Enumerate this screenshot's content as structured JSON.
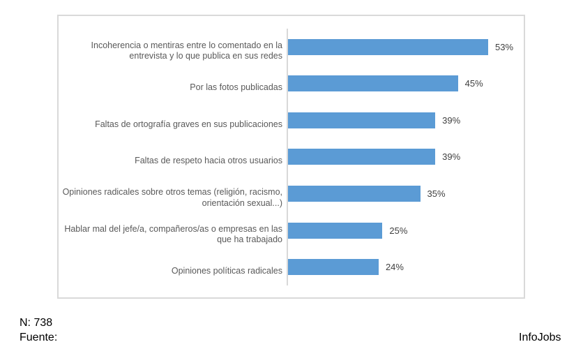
{
  "chart_data": {
    "type": "bar",
    "orientation": "horizontal",
    "title": "",
    "xlabel": "",
    "ylabel": "",
    "xlim": [
      0,
      60
    ],
    "grid": false,
    "legend": false,
    "bar_color": "#5B9BD5",
    "categories": [
      "Incoherencia o mentiras entre lo comentado en la entrevista y lo que publica en sus redes",
      "Por las fotos publicadas",
      "Faltas de ortografía graves en sus publicaciones",
      "Faltas de respeto hacia otros usuarios",
      "Opiniones radicales sobre otros temas (religión, racismo, orientación sexual...)",
      "Hablar mal del jefe/a, compañeros/as o empresas en las que ha trabajado",
      "Opiniones políticas radicales"
    ],
    "values": [
      53,
      45,
      39,
      39,
      35,
      25,
      24
    ],
    "data_labels": [
      "53%",
      "45%",
      "39%",
      "39%",
      "35%",
      "25%",
      "24%"
    ]
  },
  "footer": {
    "sample_size": "N: 738",
    "source_label": "Fuente:",
    "source_value": "InfoJobs"
  },
  "colors": {
    "bar": "#5B9BD5",
    "axis_line": "#D9D9D9",
    "frame_border": "#D9D9D9",
    "category_text": "#595959",
    "value_text": "#404040",
    "footer_text": "#000000"
  }
}
